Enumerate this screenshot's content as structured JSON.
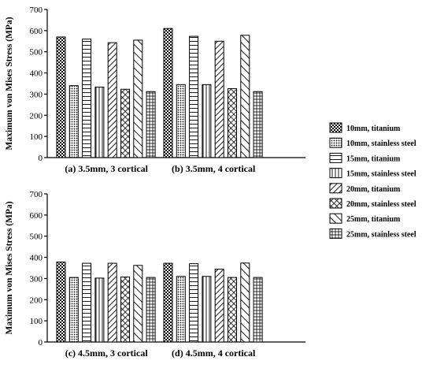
{
  "chart_data": {
    "type": "bar",
    "ylabel": "Maximum von Mises Stress (MPa)",
    "ylim": [
      0,
      700
    ],
    "yticks": [
      0,
      100,
      200,
      300,
      400,
      500,
      600,
      700
    ],
    "grid": false,
    "legend_position": "right",
    "series": [
      {
        "name": "10mm, titanium",
        "pattern": "checker-dense"
      },
      {
        "name": "10mm, stainless steel",
        "pattern": "dots"
      },
      {
        "name": "15mm, titanium",
        "pattern": "horizontal-lines"
      },
      {
        "name": "15mm, stainless steel",
        "pattern": "vertical-lines"
      },
      {
        "name": "20mm, titanium",
        "pattern": "diagonal-lines"
      },
      {
        "name": "20mm, stainless steel",
        "pattern": "crosshatch"
      },
      {
        "name": "25mm, titanium",
        "pattern": "diagonal-lines-wide"
      },
      {
        "name": "25mm, stainless steel",
        "pattern": "grid"
      }
    ],
    "panels": [
      {
        "label": "(a) 3.5mm, 3 cortical",
        "values": [
          570,
          340,
          560,
          333,
          543,
          323,
          555,
          312
        ]
      },
      {
        "label": "(b) 3.5mm, 4 cortical",
        "values": [
          610,
          345,
          573,
          345,
          550,
          326,
          578,
          312
        ]
      },
      {
        "label": "(c) 4.5mm, 3 cortical",
        "values": [
          378,
          305,
          372,
          302,
          372,
          307,
          362,
          305
        ]
      },
      {
        "label": "(d) 4.5mm, 4 cortical",
        "values": [
          372,
          310,
          370,
          310,
          344,
          305,
          373,
          305
        ]
      }
    ]
  }
}
